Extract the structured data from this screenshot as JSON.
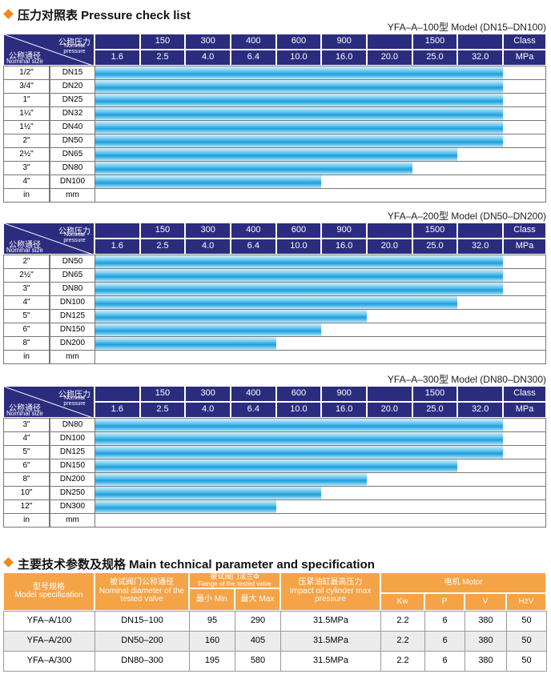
{
  "section1": {
    "title": "压力对照表 Pressure check list"
  },
  "header": {
    "pressure_cn": "公称压力",
    "pressure_en": "Nominal pressure",
    "size_cn": "公称通径",
    "size_en": "Nominal size",
    "class_values": [
      null,
      "150",
      "300",
      "400",
      "600",
      "900",
      null,
      "1500",
      null
    ],
    "class_label": "Class",
    "mpa_values": [
      "1.6",
      "2.5",
      "4.0",
      "6.4",
      "10.0",
      "16.0",
      "20.0",
      "25.0",
      "32.0"
    ],
    "mpa_label": "MPa"
  },
  "pressure_tables": [
    {
      "model": "YFA–A–100型  Model (DN15–DN100)",
      "rows": [
        {
          "in": "1/2\"",
          "dn": "DN15",
          "max_mpa": 32
        },
        {
          "in": "3/4\"",
          "dn": "DN20",
          "max_mpa": 32
        },
        {
          "in": "1\"",
          "dn": "DN25",
          "max_mpa": 32
        },
        {
          "in": "1¼\"",
          "dn": "DN32",
          "max_mpa": 32
        },
        {
          "in": "1½\"",
          "dn": "DN40",
          "max_mpa": 32
        },
        {
          "in": "2\"",
          "dn": "DN50",
          "max_mpa": 32
        },
        {
          "in": "2½\"",
          "dn": "DN65",
          "max_mpa": 25
        },
        {
          "in": "3\"",
          "dn": "DN80",
          "max_mpa": 20
        },
        {
          "in": "4\"",
          "dn": "DN100",
          "max_mpa": 10
        }
      ],
      "units": {
        "in": "in",
        "mm": "mm"
      }
    },
    {
      "model": "YFA–A–200型  Model (DN50–DN200)",
      "rows": [
        {
          "in": "2\"",
          "dn": "DN50",
          "max_mpa": 32
        },
        {
          "in": "2½\"",
          "dn": "DN65",
          "max_mpa": 32
        },
        {
          "in": "3\"",
          "dn": "DN80",
          "max_mpa": 32
        },
        {
          "in": "4\"",
          "dn": "DN100",
          "max_mpa": 25
        },
        {
          "in": "5\"",
          "dn": "DN125",
          "max_mpa": 16
        },
        {
          "in": "6\"",
          "dn": "DN150",
          "max_mpa": 10
        },
        {
          "in": "8\"",
          "dn": "DN200",
          "max_mpa": 6.4
        }
      ],
      "units": {
        "in": "in",
        "mm": "mm"
      }
    },
    {
      "model": "YFA–A–300型  Model (DN80–DN300)",
      "rows": [
        {
          "in": "3\"",
          "dn": "DN80",
          "max_mpa": 32
        },
        {
          "in": "4\"",
          "dn": "DN100",
          "max_mpa": 32
        },
        {
          "in": "5\"",
          "dn": "DN125",
          "max_mpa": 32
        },
        {
          "in": "6\"",
          "dn": "DN150",
          "max_mpa": 25
        },
        {
          "in": "8\"",
          "dn": "DN200",
          "max_mpa": 16
        },
        {
          "in": "10\"",
          "dn": "DN250",
          "max_mpa": 10
        },
        {
          "in": "12\"",
          "dn": "DN300",
          "max_mpa": 6.4
        }
      ],
      "units": {
        "in": "in",
        "mm": "mm"
      }
    }
  ],
  "section2": {
    "title": "主要技术参数及规格 Main technical parameter and specification"
  },
  "params": {
    "headers": {
      "model_cn": "型号规格",
      "model_en": "Model specification",
      "dia_cn": "被试阀门公称通径",
      "dia_en": "Nominal diameter of the tested valve",
      "flange_cn": "被试阀门法兰Φ",
      "flange_en": "Flange of the tested valve",
      "min": "最小 Min",
      "max": "最大 Max",
      "press_cn": "压紧油缸最高压力",
      "press_en": "Impact oil cylinder max pressure",
      "motor": "电机  Motor",
      "kw": "Kw",
      "p": "P",
      "v": "V",
      "hz": "HzV"
    },
    "rows": [
      [
        "YFA–A/100",
        "DN15–100",
        "95",
        "290",
        "31.5MPa",
        "2.2",
        "6",
        "380",
        "50"
      ],
      [
        "YFA–A/200",
        "DN50–200",
        "160",
        "405",
        "31.5MPa",
        "2.2",
        "6",
        "380",
        "50"
      ],
      [
        "YFA–A/300",
        "DN80–300",
        "195",
        "580",
        "31.5MPa",
        "2.2",
        "6",
        "380",
        "50"
      ]
    ]
  }
}
